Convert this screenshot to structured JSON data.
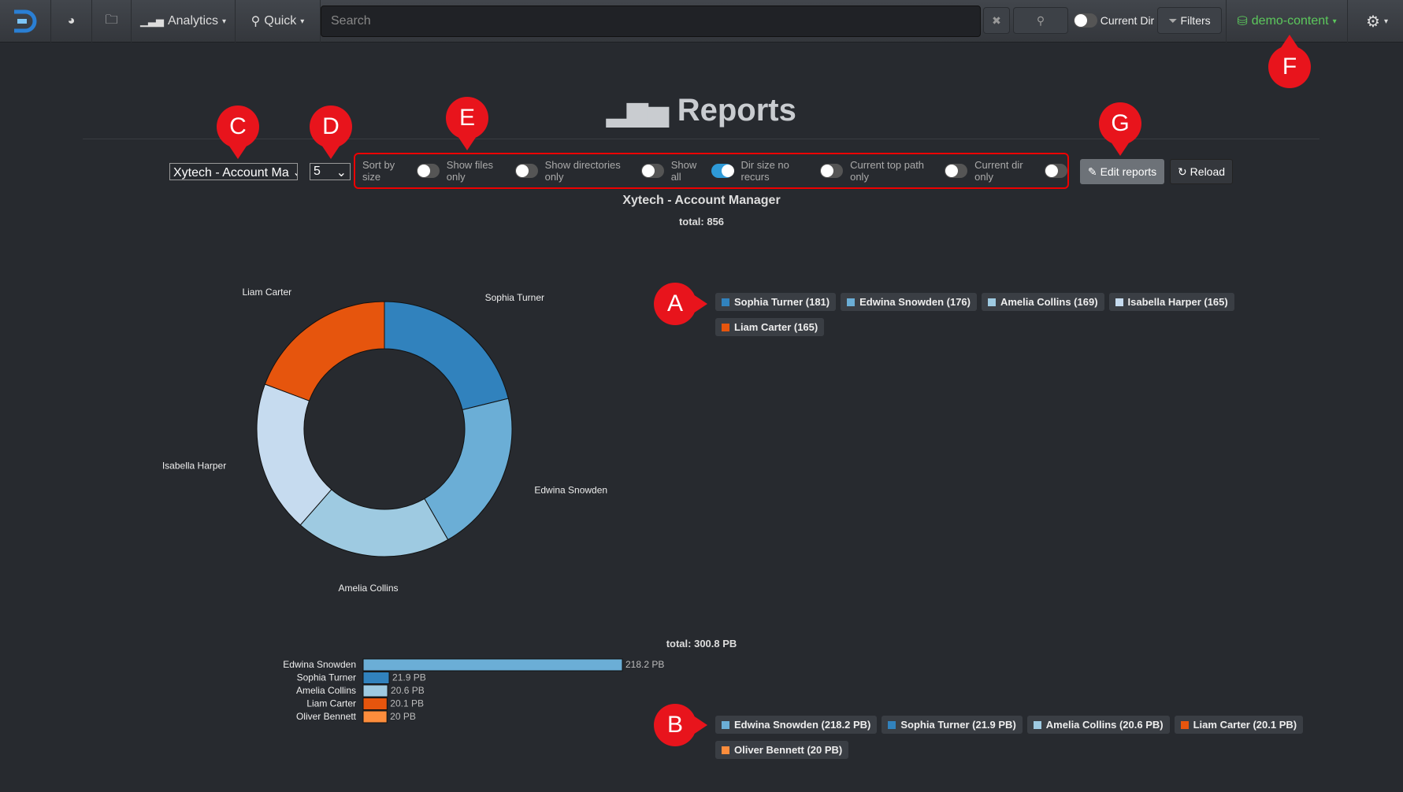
{
  "nav": {
    "analytics": "Analytics",
    "quick": "Quick",
    "search_placeholder": "Search",
    "current_dir": "Current Dir",
    "filters": "Filters",
    "index": "demo-content"
  },
  "page": {
    "title": "Reports",
    "report_select": "Xytech - Account Ma",
    "count_select": "5",
    "toggles": [
      {
        "label": "Sort by size",
        "on": false
      },
      {
        "label": "Show files only",
        "on": false
      },
      {
        "label": "Show directories only",
        "on": false
      },
      {
        "label": "Show all",
        "on": true
      },
      {
        "label": "Dir size no recurs",
        "on": false
      },
      {
        "label": "Current top path only",
        "on": false
      },
      {
        "label": "Current dir only",
        "on": false
      }
    ],
    "edit_reports": "Edit reports",
    "reload": "Reload",
    "report_title": "Xytech - Account Manager"
  },
  "markers": {
    "a": "A",
    "b": "B",
    "c": "C",
    "d": "D",
    "e": "E",
    "f": "F",
    "g": "G"
  },
  "chart_data": [
    {
      "type": "pie",
      "title": "Xytech - Account Manager",
      "total_label": "total: 856",
      "categories": [
        "Sophia Turner",
        "Edwina Snowden",
        "Amelia Collins",
        "Isabella Harper",
        "Liam Carter"
      ],
      "values": [
        181,
        176,
        169,
        165,
        165
      ],
      "colors": [
        "#3182bd",
        "#6baed6",
        "#9ecae1",
        "#c6dbef",
        "#e6550d"
      ],
      "legend": [
        "Sophia Turner (181)",
        "Edwina Snowden (176)",
        "Amelia Collins (169)",
        "Isabella Harper (165)",
        "Liam Carter (165)"
      ]
    },
    {
      "type": "bar",
      "total_label": "total: 300.8 PB",
      "unit": "PB",
      "categories": [
        "Edwina Snowden",
        "Sophia Turner",
        "Amelia Collins",
        "Liam Carter",
        "Oliver Bennett"
      ],
      "values": [
        218.2,
        21.9,
        20.6,
        20.1,
        20
      ],
      "value_labels": [
        "218.2 PB",
        "21.9 PB",
        "20.6 PB",
        "20.1 PB",
        "20 PB"
      ],
      "colors": [
        "#6baed6",
        "#3182bd",
        "#9ecae1",
        "#e6550d",
        "#fd8d3c"
      ],
      "legend": [
        "Edwina Snowden (218.2 PB)",
        "Sophia Turner (21.9 PB)",
        "Amelia Collins (20.6 PB)",
        "Liam Carter (20.1 PB)",
        "Oliver Bennett (20 PB)"
      ]
    }
  ]
}
